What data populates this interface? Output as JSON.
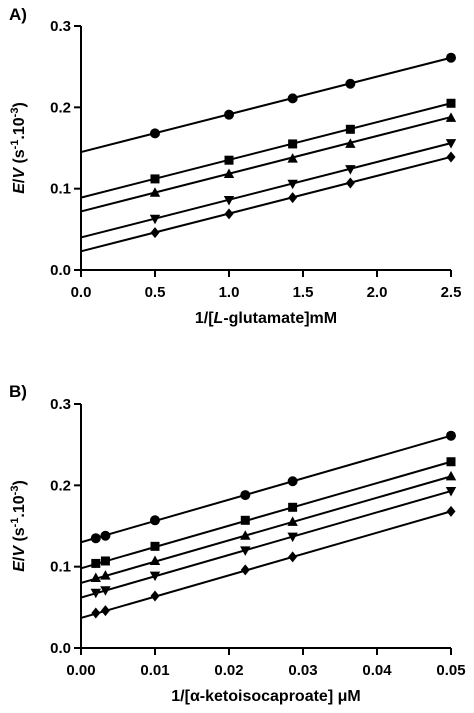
{
  "chart_data": [
    {
      "type": "scatter",
      "panel_label": "A)",
      "xlabel": "1/[L-glutamate]mM",
      "xlabel_parts": [
        "1/[",
        "L",
        "-glutamate]mM"
      ],
      "ylabel": "E/V (s-1.10-3)",
      "xlim": [
        0.0,
        2.5
      ],
      "ylim": [
        0.0,
        0.3
      ],
      "x_ticks": [
        0.0,
        0.5,
        1.0,
        1.5,
        2.0,
        2.5
      ],
      "x_tick_labels": [
        "0.0",
        "0.5",
        "1.0",
        "1.5",
        "2.0",
        "2.5"
      ],
      "y_ticks": [
        0.0,
        0.1,
        0.2,
        0.3
      ],
      "y_tick_labels": [
        "0.0",
        "0.1",
        "0.2",
        "0.3"
      ],
      "grid": false,
      "x": [
        0.5,
        1.0,
        1.43,
        1.82,
        2.5
      ],
      "series": [
        {
          "marker": "circle",
          "values": [
            0.168,
            0.191,
            0.211,
            0.229,
            0.261
          ],
          "fit": {
            "intercept": 0.145,
            "slope": 0.0464
          }
        },
        {
          "marker": "square",
          "values": [
            0.112,
            0.135,
            0.155,
            0.173,
            0.205
          ],
          "fit": {
            "intercept": 0.089,
            "slope": 0.0464
          }
        },
        {
          "marker": "triangle-up",
          "values": [
            0.095,
            0.118,
            0.137,
            0.155,
            0.187
          ],
          "fit": {
            "intercept": 0.072,
            "slope": 0.0464
          }
        },
        {
          "marker": "triangle-down",
          "values": [
            0.063,
            0.086,
            0.106,
            0.124,
            0.156
          ],
          "fit": {
            "intercept": 0.04,
            "slope": 0.0464
          }
        },
        {
          "marker": "diamond",
          "values": [
            0.046,
            0.069,
            0.089,
            0.107,
            0.139
          ],
          "fit": {
            "intercept": 0.023,
            "slope": 0.0464
          }
        }
      ]
    },
    {
      "type": "scatter",
      "panel_label": "B)",
      "xlabel": "1/[α-ketoisocaproate] μM",
      "ylabel": "E/V (s-1.10-3)",
      "xlim": [
        0.0,
        0.05
      ],
      "ylim": [
        0.0,
        0.3
      ],
      "x_ticks": [
        0.0,
        0.01,
        0.02,
        0.03,
        0.04,
        0.05
      ],
      "x_tick_labels": [
        "0.00",
        "0.01",
        "0.02",
        "0.03",
        "0.04",
        "0.05"
      ],
      "y_ticks": [
        0.0,
        0.1,
        0.2,
        0.3
      ],
      "y_tick_labels": [
        "0.0",
        "0.1",
        "0.2",
        "0.3"
      ],
      "grid": false,
      "x": [
        0.002,
        0.0033,
        0.01,
        0.0222,
        0.0286,
        0.05
      ],
      "series": [
        {
          "marker": "circle",
          "values": [
            0.135,
            0.138,
            0.157,
            0.188,
            0.205,
            0.261
          ],
          "fit": {
            "intercept": 0.13,
            "slope": 2.62
          }
        },
        {
          "marker": "square",
          "values": [
            0.104,
            0.107,
            0.125,
            0.157,
            0.173,
            0.229
          ],
          "fit": {
            "intercept": 0.098,
            "slope": 2.62
          }
        },
        {
          "marker": "triangle-up",
          "values": [
            0.086,
            0.089,
            0.107,
            0.138,
            0.155,
            0.211
          ],
          "fit": {
            "intercept": 0.08,
            "slope": 2.62
          }
        },
        {
          "marker": "triangle-down",
          "values": [
            0.068,
            0.071,
            0.089,
            0.12,
            0.137,
            0.193
          ],
          "fit": {
            "intercept": 0.062,
            "slope": 2.62
          }
        },
        {
          "marker": "diamond",
          "values": [
            0.043,
            0.046,
            0.064,
            0.096,
            0.112,
            0.168
          ],
          "fit": {
            "intercept": 0.037,
            "slope": 2.62
          }
        }
      ]
    }
  ]
}
